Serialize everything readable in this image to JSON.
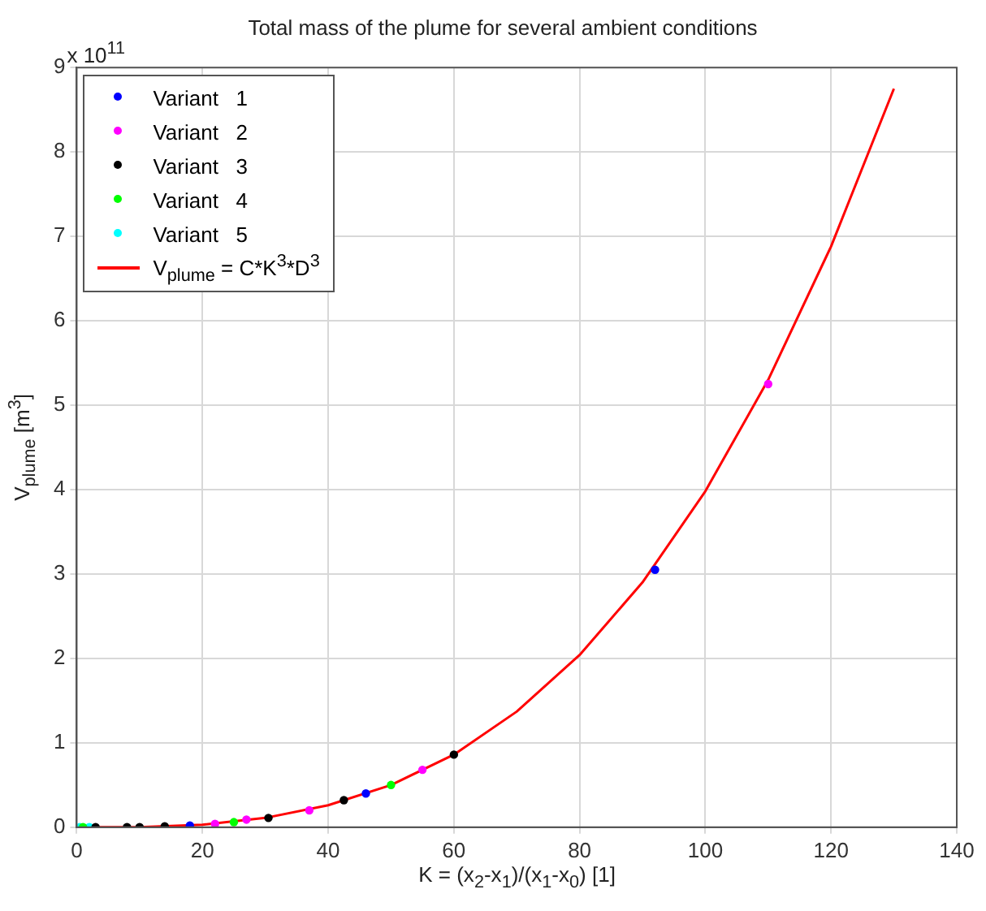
{
  "chart_data": {
    "type": "scatter",
    "title": "Total mass of the plume for several ambient conditions",
    "xlabel": "K = (x$_{2}$-x$_{1}$)/(x$_{1}$-x$_{0}$) [1]",
    "ylabel": "V$_{plume}$ [m$^{3}$]",
    "annotations": [
      "x 10$^{11}$"
    ],
    "xlim": [
      0,
      140
    ],
    "xticks": [
      0,
      20,
      40,
      60,
      80,
      100,
      120,
      140
    ],
    "ylim": [
      0,
      9
    ],
    "yticks": [
      0,
      1,
      2,
      3,
      4,
      5,
      6,
      7,
      8,
      9
    ],
    "grid": true,
    "legend": "top left",
    "marker": "circle",
    "series": [
      {
        "name": "Variant   1",
        "color": "#0000ff",
        "x": [
          18,
          46,
          92
        ],
        "values": [
          0.02,
          0.4,
          3.05
        ]
      },
      {
        "name": "Variant   2",
        "color": "#ff00ff",
        "x": [
          22,
          27,
          37,
          55,
          110
        ],
        "values": [
          0.04,
          0.09,
          0.2,
          0.68,
          5.25
        ]
      },
      {
        "name": "Variant   3",
        "color": "#000000",
        "x": [
          3,
          8,
          10,
          14,
          30.5,
          42.5,
          60
        ],
        "values": [
          0,
          0,
          0,
          0.01,
          0.11,
          0.32,
          0.86
        ]
      },
      {
        "name": "Variant   4",
        "color": "#00ff00",
        "x": [
          1,
          25,
          50
        ],
        "values": [
          0,
          0.06,
          0.5
        ]
      },
      {
        "name": "Variant   5",
        "color": "#00ffff",
        "x": [
          0.5,
          2
        ],
        "values": [
          0,
          0
        ]
      },
      {
        "name": "V$_{plume}$ = C*K$^{3}$*D$^{3}$",
        "type": "line",
        "color": "#ff0000",
        "marker": "none",
        "line_style": "solid",
        "x": [
          0,
          10,
          20,
          30,
          40,
          50,
          60,
          70,
          80,
          90,
          100,
          110,
          120,
          130
        ],
        "values": [
          0,
          0,
          0.03,
          0.11,
          0.26,
          0.5,
          0.86,
          1.37,
          2.04,
          2.9,
          3.98,
          5.3,
          6.88,
          8.75
        ]
      }
    ]
  }
}
